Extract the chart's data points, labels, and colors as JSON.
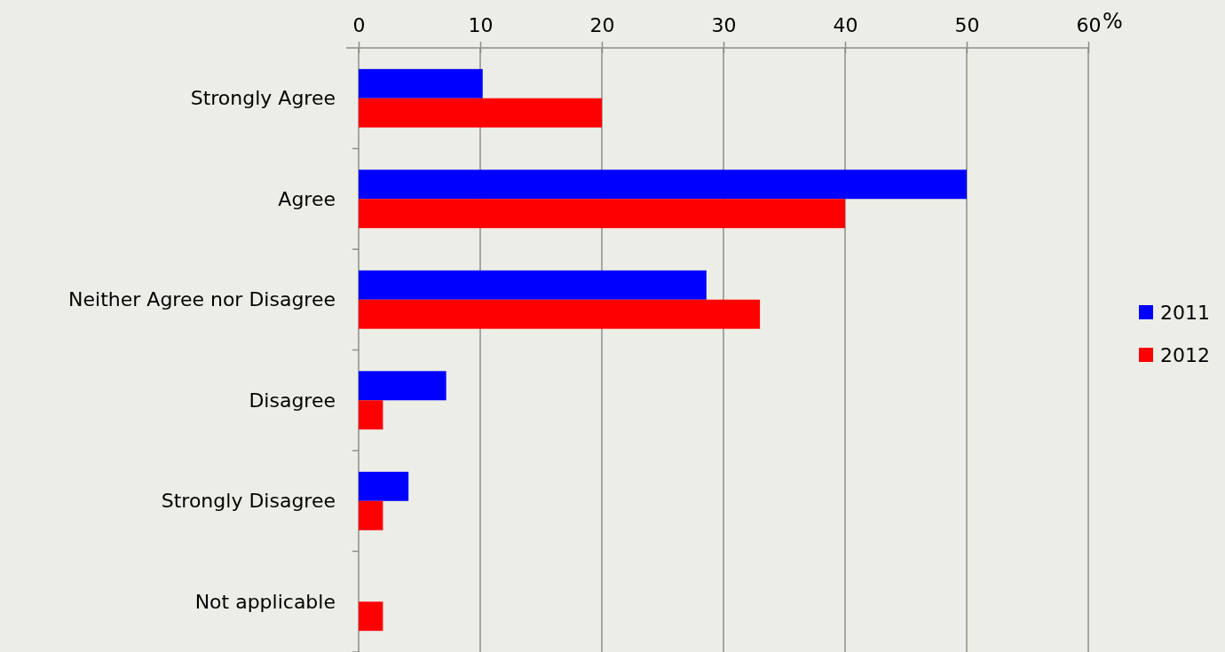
{
  "chart_data": {
    "type": "bar",
    "orientation": "horizontal",
    "xlabel": "%",
    "categories": [
      "Strongly Agree",
      "Agree",
      "Neither Agree nor Disagree",
      "Disagree",
      "Strongly Disagree",
      "Not applicable"
    ],
    "series": [
      {
        "name": "2011",
        "color": "#0000ff",
        "values": [
          10.2,
          50,
          28.6,
          7.2,
          4.1,
          null
        ]
      },
      {
        "name": "2012",
        "color": "#ff0000",
        "values": [
          20,
          40,
          33,
          2,
          2,
          2
        ]
      }
    ],
    "xlim": [
      0,
      60
    ],
    "xticks": [
      0,
      10,
      20,
      30,
      40,
      50,
      60
    ],
    "grid": "x",
    "legend": "right"
  }
}
